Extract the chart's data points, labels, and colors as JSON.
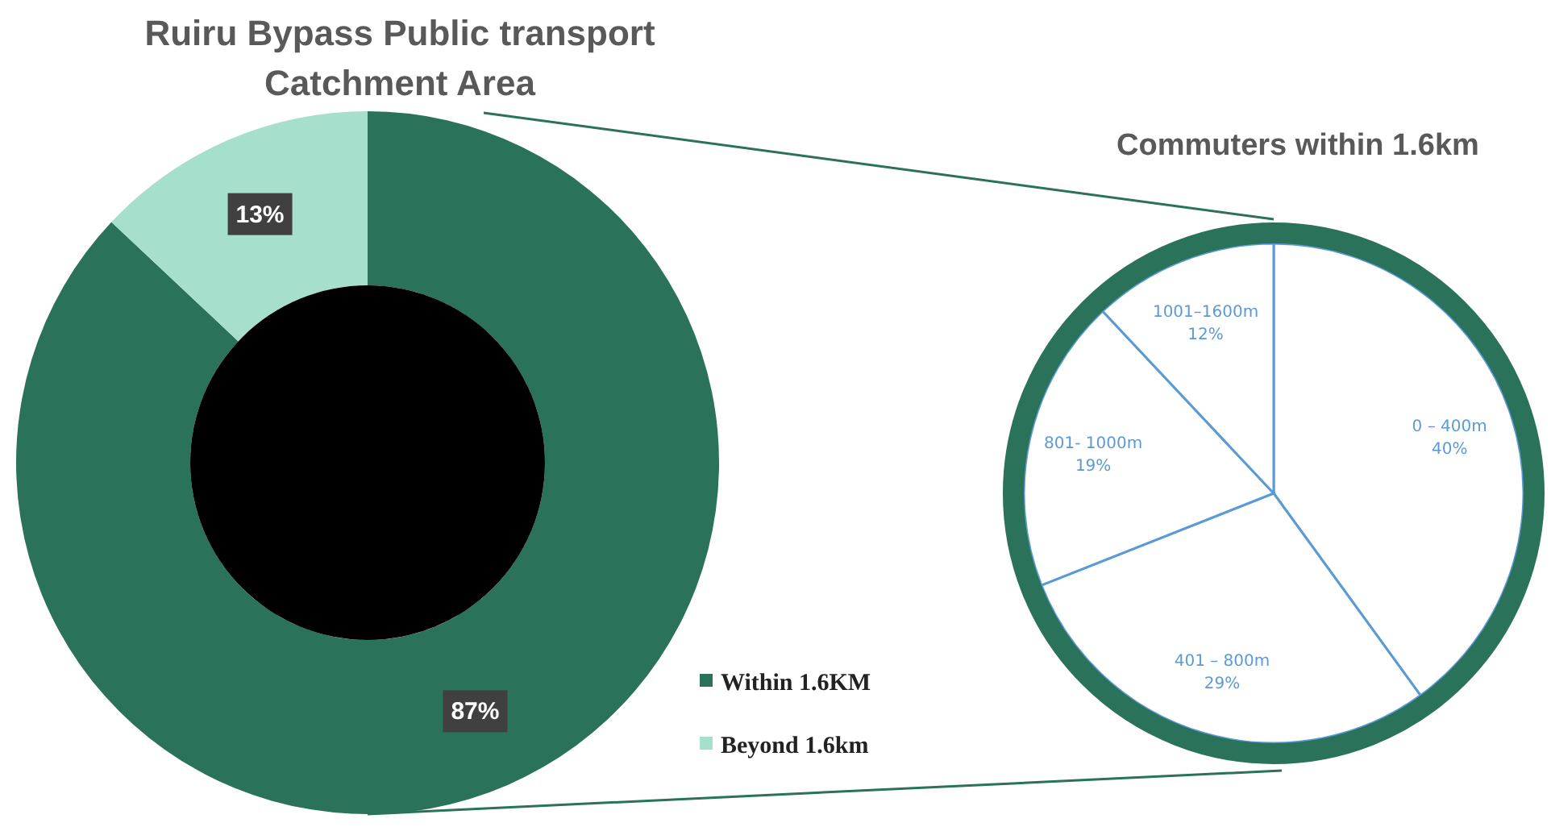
{
  "chart_data": [
    {
      "type": "donut",
      "title": "Ruiru Bypass Public transport Catchment Area",
      "categories": [
        "Within 1.6KM",
        "Beyond 1.6km"
      ],
      "values": [
        87,
        13
      ],
      "value_labels": [
        "87%",
        "13%"
      ],
      "colors": [
        "#2a7259",
        "#a6e0cc"
      ],
      "data_labels": true,
      "legend": "bottom right"
    },
    {
      "type": "pie",
      "title": "Commuters within 1.6km",
      "categories": [
        "0 – 400m",
        "401 – 800m",
        "801- 1000m",
        "1001–1600m"
      ],
      "values": [
        40,
        29,
        19,
        12
      ],
      "value_labels": [
        "40%",
        "29%",
        "19%",
        "12%"
      ],
      "colors": [
        "#ffffff",
        "#ffffff",
        "#ffffff",
        "#ffffff"
      ],
      "data_labels": true
    }
  ]
}
